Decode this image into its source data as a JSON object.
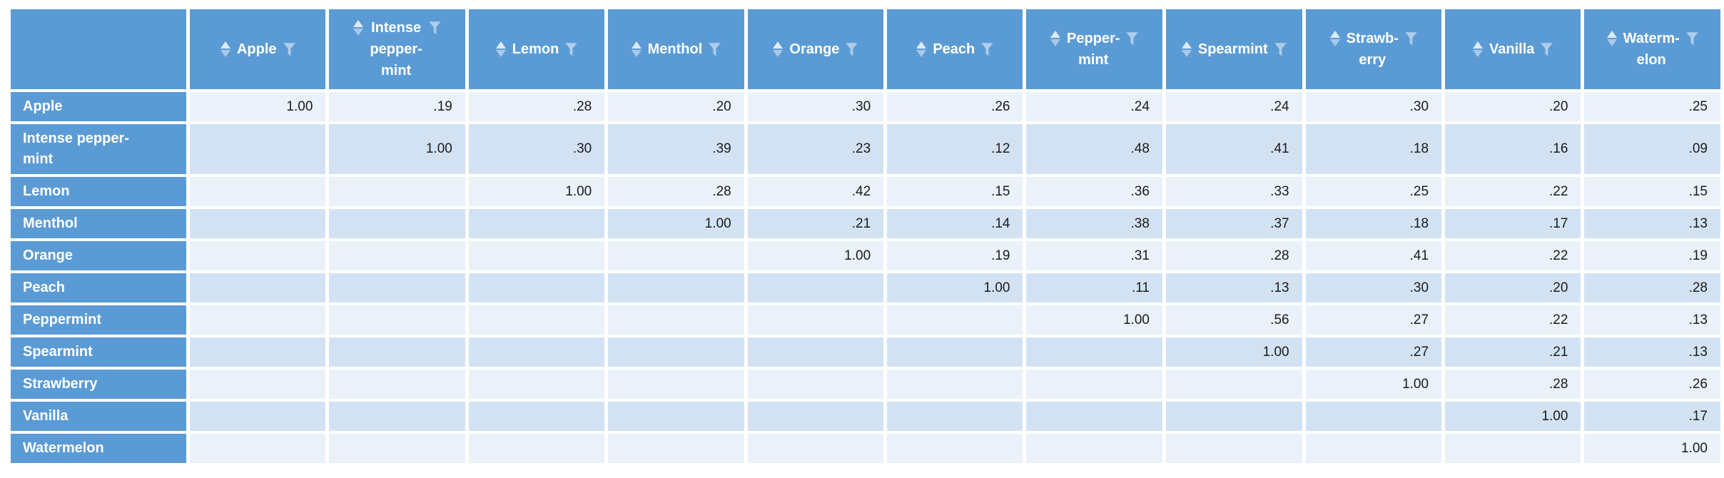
{
  "table": {
    "description_colors": {
      "header_bg": "#5B9BD5",
      "row_band_light": "#EAF1F9",
      "row_band_dark": "#D3E2F3",
      "header_text": "#FFFFFF",
      "value_text": "#1A1A1A",
      "sort_arrow_up": "#DEEAF6",
      "sort_arrow_down": "#A9C9E9",
      "filter_funnel": "#AFCDE9",
      "grid_gap": "#FFFFFF"
    },
    "corner_label": "",
    "header_icons": {
      "sort": "sort-arrows-icon",
      "filter": "filter-funnel-icon"
    },
    "columns": [
      {
        "id": "apple",
        "label": "Apple",
        "label_lines": [
          "Apple"
        ]
      },
      {
        "id": "intense-peppermint",
        "label": "Intense peppermint",
        "label_lines": [
          "Intense",
          "pepper-",
          "mint"
        ]
      },
      {
        "id": "lemon",
        "label": "Lemon",
        "label_lines": [
          "Lemon"
        ]
      },
      {
        "id": "menthol",
        "label": "Menthol",
        "label_lines": [
          "Menthol"
        ]
      },
      {
        "id": "orange",
        "label": "Orange",
        "label_lines": [
          "Orange"
        ]
      },
      {
        "id": "peach",
        "label": "Peach",
        "label_lines": [
          "Peach"
        ]
      },
      {
        "id": "peppermint",
        "label": "Peppermint",
        "label_lines": [
          "Pepper-",
          "mint"
        ]
      },
      {
        "id": "spearmint",
        "label": "Spearmint",
        "label_lines": [
          "Spearmint"
        ]
      },
      {
        "id": "strawberry",
        "label": "Strawberry",
        "label_lines": [
          "Strawb-",
          "erry"
        ]
      },
      {
        "id": "vanilla",
        "label": "Vanilla",
        "label_lines": [
          "Vanilla"
        ]
      },
      {
        "id": "watermelon",
        "label": "Watermelon",
        "label_lines": [
          "Waterm-",
          "elon"
        ]
      }
    ],
    "rows": [
      {
        "id": "apple",
        "label_lines": [
          "Apple"
        ],
        "values": [
          "1.00",
          ".19",
          ".28",
          ".20",
          ".30",
          ".26",
          ".24",
          ".24",
          ".30",
          ".20",
          ".25"
        ]
      },
      {
        "id": "intense-peppermint",
        "label_lines": [
          "Intense pepper-",
          "mint"
        ],
        "values": [
          "",
          "1.00",
          ".30",
          ".39",
          ".23",
          ".12",
          ".48",
          ".41",
          ".18",
          ".16",
          ".09"
        ]
      },
      {
        "id": "lemon",
        "label_lines": [
          "Lemon"
        ],
        "values": [
          "",
          "",
          "1.00",
          ".28",
          ".42",
          ".15",
          ".36",
          ".33",
          ".25",
          ".22",
          ".15"
        ]
      },
      {
        "id": "menthol",
        "label_lines": [
          "Menthol"
        ],
        "values": [
          "",
          "",
          "",
          "1.00",
          ".21",
          ".14",
          ".38",
          ".37",
          ".18",
          ".17",
          ".13"
        ]
      },
      {
        "id": "orange",
        "label_lines": [
          "Orange"
        ],
        "values": [
          "",
          "",
          "",
          "",
          "1.00",
          ".19",
          ".31",
          ".28",
          ".41",
          ".22",
          ".19"
        ]
      },
      {
        "id": "peach",
        "label_lines": [
          "Peach"
        ],
        "values": [
          "",
          "",
          "",
          "",
          "",
          "1.00",
          ".11",
          ".13",
          ".30",
          ".20",
          ".28"
        ]
      },
      {
        "id": "peppermint",
        "label_lines": [
          "Peppermint"
        ],
        "values": [
          "",
          "",
          "",
          "",
          "",
          "",
          "1.00",
          ".56",
          ".27",
          ".22",
          ".13"
        ]
      },
      {
        "id": "spearmint",
        "label_lines": [
          "Spearmint"
        ],
        "values": [
          "",
          "",
          "",
          "",
          "",
          "",
          "",
          "1.00",
          ".27",
          ".21",
          ".13"
        ]
      },
      {
        "id": "strawberry",
        "label_lines": [
          "Strawberry"
        ],
        "values": [
          "",
          "",
          "",
          "",
          "",
          "",
          "",
          "",
          "1.00",
          ".28",
          ".26"
        ]
      },
      {
        "id": "vanilla",
        "label_lines": [
          "Vanilla"
        ],
        "values": [
          "",
          "",
          "",
          "",
          "",
          "",
          "",
          "",
          "",
          "1.00",
          ".17"
        ]
      },
      {
        "id": "watermelon",
        "label_lines": [
          "Watermelon"
        ],
        "values": [
          "",
          "",
          "",
          "",
          "",
          "",
          "",
          "",
          "",
          "",
          "1.00"
        ]
      }
    ]
  }
}
